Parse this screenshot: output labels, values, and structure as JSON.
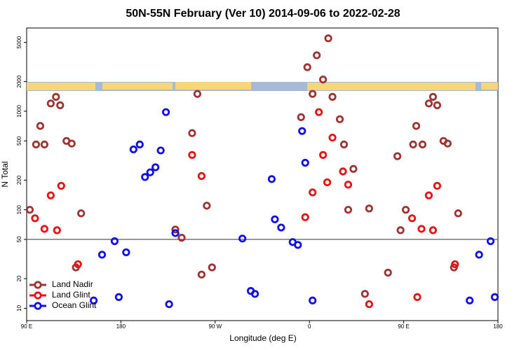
{
  "chart_data": {
    "type": "scatter",
    "title": "50N-55N February (Ver 10)   2014-09-06 to 2022-02-28",
    "x_label": "Longitude (deg E)",
    "y_label": "N Total",
    "log_y": true,
    "legend_position": "lower left",
    "hline": 50,
    "xlim": [
      -270,
      180
    ],
    "ylim": [
      7.5,
      7000
    ],
    "xticks": [
      {
        "value": -270,
        "label": "90 E"
      },
      {
        "value": -180,
        "label": "180"
      },
      {
        "value": -90,
        "label": "90 W"
      },
      0,
      {
        "value": 90,
        "label": "90 E"
      },
      180
    ],
    "yticks": [
      10,
      20,
      50,
      100,
      200,
      500,
      1000,
      2000,
      5000
    ],
    "series": [
      {
        "name": "Land Nadir",
        "color": "#a03232",
        "x": [
          -267,
          -261,
          -257,
          -253,
          -247,
          -242,
          -238,
          -232,
          -227,
          -223,
          -218,
          -128,
          -122,
          -112,
          -107,
          -103,
          -98,
          -93,
          -8,
          -2,
          3,
          7,
          13,
          18,
          22,
          29,
          33,
          37,
          42,
          57,
          53,
          75,
          84,
          87,
          92,
          99,
          102,
          108,
          114,
          118,
          122,
          128,
          132,
          138,
          142
        ],
        "values": [
          100,
          460,
          710,
          460,
          1200,
          1400,
          1150,
          500,
          470,
          26,
          92,
          63,
          52,
          600,
          1500,
          22,
          110,
          26,
          870,
          2800,
          1500,
          3700,
          2100,
          5500,
          1400,
          830,
          460,
          100,
          260,
          103,
          14,
          23,
          350,
          62,
          100,
          460,
          710,
          460,
          1200,
          1400,
          1150,
          500,
          470,
          26,
          92
        ]
      },
      {
        "name": "Land Glint",
        "color": "#ee1111",
        "x": [
          -262,
          -253,
          -247,
          -241,
          -237,
          -221,
          -112,
          -103,
          -4,
          3,
          9,
          13,
          17,
          22,
          32,
          37,
          57,
          98,
          103,
          107,
          114,
          118,
          122,
          139
        ],
        "values": [
          82,
          64,
          140,
          62,
          175,
          28,
          360,
          220,
          84,
          150,
          980,
          360,
          190,
          540,
          245,
          180,
          11,
          82,
          13,
          64,
          140,
          62,
          175,
          28
        ]
      },
      {
        "name": "Ocean Glint",
        "color": "#1010ee",
        "x": [
          -206,
          -198,
          -186,
          -182,
          -175,
          -168,
          -162,
          -157,
          -152,
          -147,
          -142,
          -137,
          -134,
          -128,
          -64,
          -56,
          -52,
          -36,
          -33,
          -27,
          -16,
          -11,
          -7,
          -4,
          3,
          153,
          162,
          173,
          177
        ],
        "values": [
          12,
          35,
          48,
          13,
          37,
          410,
          460,
          215,
          240,
          270,
          400,
          980,
          11,
          58,
          51,
          15,
          14,
          205,
          80,
          66,
          47,
          44,
          630,
          300,
          12,
          12,
          35,
          48,
          13
        ]
      }
    ]
  }
}
